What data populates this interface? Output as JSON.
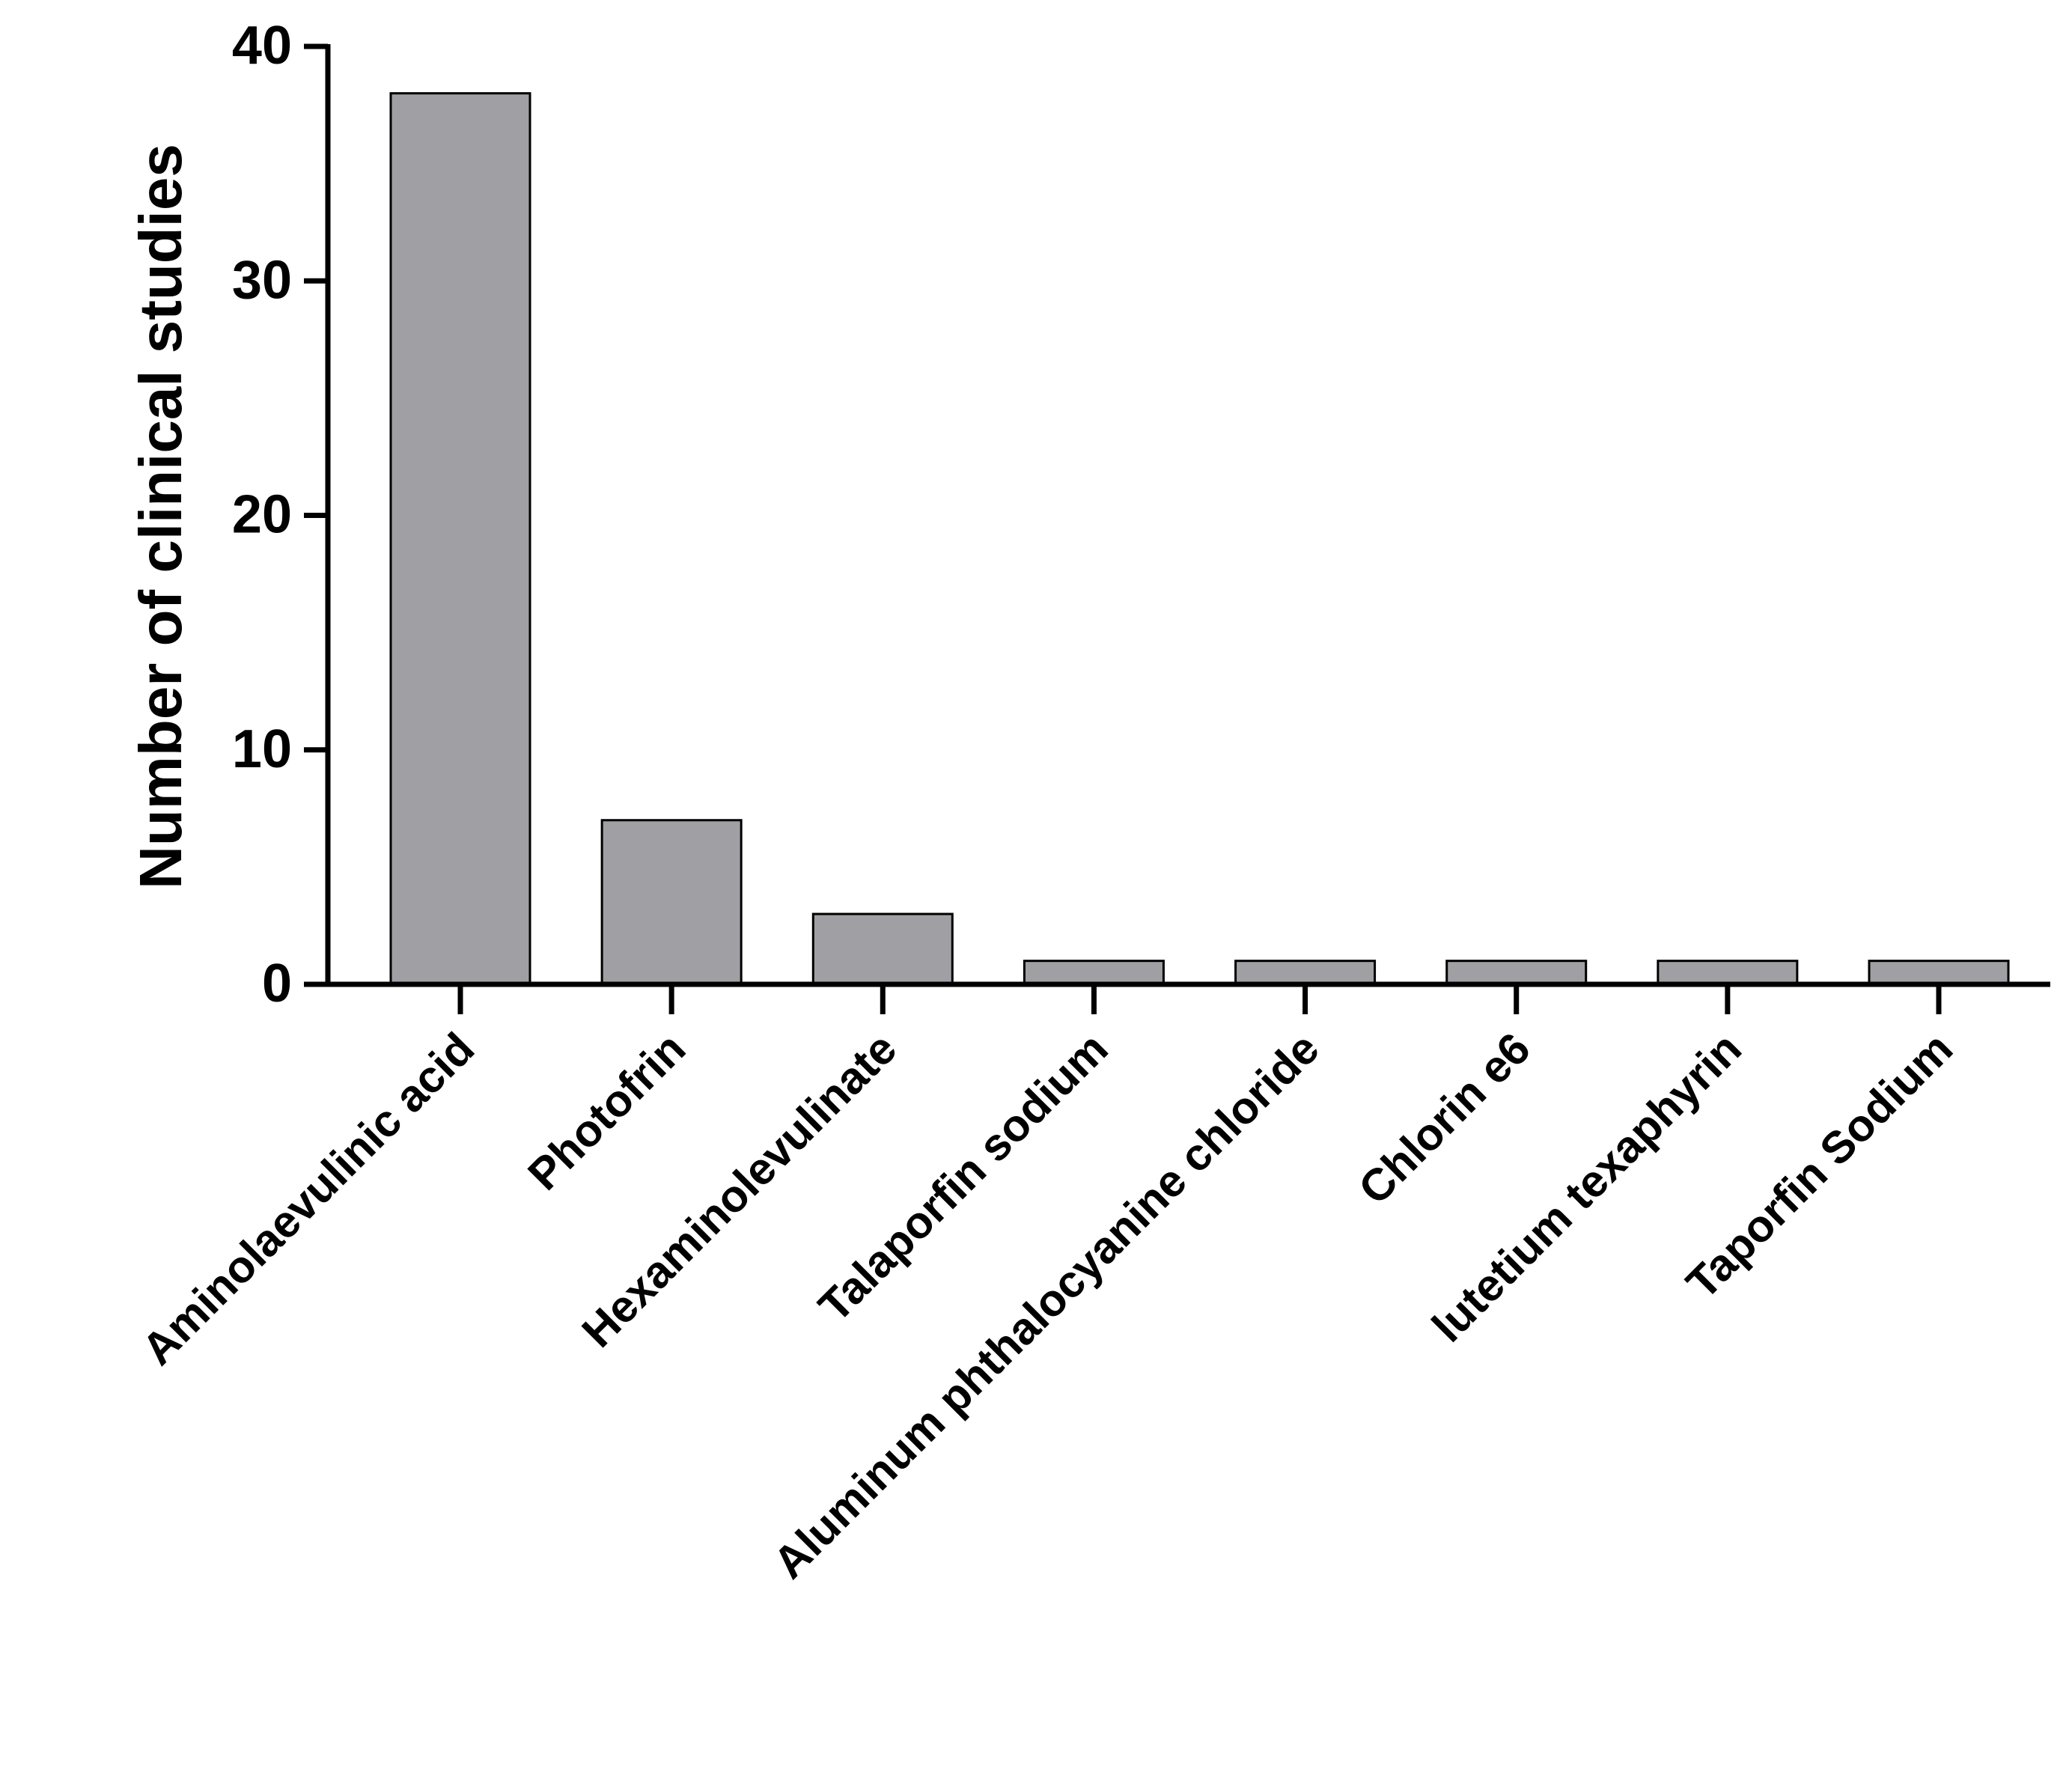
{
  "chart_data": {
    "type": "bar",
    "y_label": "Number of clinical studies",
    "categories": [
      "Aminolaevulinic acid",
      "Photofrin",
      "Hexaminolevulinate",
      "Talaporfin sodium",
      "Aluminum phthalocyanine chloride",
      "Chlorin e6",
      "lutetium texaphyrin",
      "Taporfin Sodium"
    ],
    "values": [
      38,
      7,
      3,
      1,
      1,
      1,
      1,
      1
    ],
    "color": "#a0a0a4",
    "ylim": [
      0,
      40
    ],
    "yticks": [
      0,
      10,
      20,
      30,
      40
    ],
    "grid": false
  }
}
